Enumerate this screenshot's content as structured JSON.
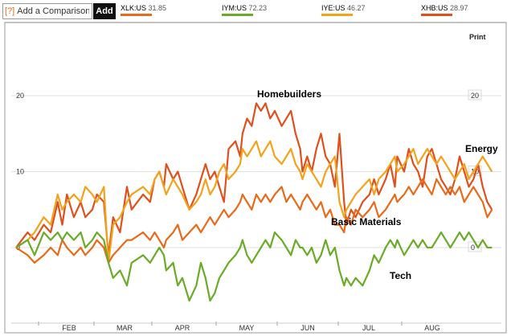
{
  "toolbar": {
    "help_label": "[?]",
    "compare_placeholder": "Add a Comparison",
    "add_label": "Add",
    "print_label": "Print"
  },
  "legend": [
    {
      "ticker": "XLK:US",
      "value": "31.85",
      "color": "#e86a1a"
    },
    {
      "ticker": "IYM:US",
      "value": "72.23",
      "color": "#6aab27"
    },
    {
      "ticker": "IYE:US",
      "value": "46.27",
      "color": "#f5a21b"
    },
    {
      "ticker": "XHB:US",
      "value": "28.97",
      "color": "#e0501c"
    }
  ],
  "annotations": {
    "homebuilders": "Homebuilders",
    "energy": "Energy",
    "basic_materials": "Basic Materials",
    "tech": "Tech"
  },
  "chart_data": {
    "type": "line",
    "x_tick_labels": [
      "FEB",
      "MAR",
      "APR",
      "MAY",
      "JUN",
      "JUL",
      "AUG"
    ],
    "y_tick_labels": [
      "20",
      "10",
      "0"
    ],
    "y_ticks": [
      20,
      10,
      0
    ],
    "ylim": [
      -10,
      23
    ],
    "xlim": [
      0,
      208
    ],
    "grid": true,
    "series": [
      {
        "name": "Homebuilders",
        "color": "#e0501c",
        "width": 2.2,
        "x": [
          0,
          5,
          8,
          12,
          15,
          18,
          20,
          22,
          25,
          28,
          30,
          33,
          35,
          38,
          40,
          42,
          45,
          48,
          50,
          55,
          58,
          60,
          62,
          64,
          65,
          68,
          70,
          72,
          75,
          78,
          80,
          82,
          84,
          86,
          88,
          90,
          92,
          95,
          97,
          98,
          100,
          102,
          104,
          106,
          108,
          110,
          112,
          115,
          117,
          119,
          121,
          123,
          124,
          126,
          128,
          130,
          132,
          134,
          136,
          138,
          140,
          142,
          143,
          145,
          147,
          150,
          153,
          155,
          157,
          160,
          162,
          164,
          165,
          168,
          170,
          172,
          174,
          176,
          178,
          180,
          182,
          184,
          186,
          188,
          190,
          192,
          194,
          196,
          198,
          200,
          202,
          204,
          206
        ],
        "y": [
          0,
          2,
          1,
          3,
          2,
          6,
          3,
          7,
          4,
          6,
          4,
          5,
          7,
          6,
          -1,
          4,
          2,
          8,
          5,
          7,
          6,
          9,
          10,
          8,
          11,
          9,
          10,
          8,
          5,
          7,
          9,
          11,
          9,
          10,
          8,
          6,
          13,
          14,
          12,
          15,
          17,
          16,
          19,
          18,
          19,
          17,
          18,
          16,
          17,
          18,
          15,
          13,
          10,
          12,
          10,
          13,
          15,
          12,
          11,
          8,
          15,
          6,
          3,
          5,
          4,
          6,
          7,
          9,
          7,
          9,
          11,
          8,
          12,
          10,
          13,
          11,
          10,
          8,
          12,
          13,
          11,
          9,
          8,
          7,
          9,
          12,
          10,
          8,
          9,
          11,
          8,
          6,
          5
        ]
      },
      {
        "name": "Energy",
        "color": "#f5a21b",
        "width": 2.2,
        "x": [
          0,
          5,
          8,
          12,
          15,
          18,
          20,
          22,
          25,
          28,
          30,
          33,
          35,
          38,
          40,
          42,
          45,
          48,
          50,
          55,
          58,
          60,
          62,
          64,
          65,
          68,
          70,
          72,
          75,
          78,
          80,
          82,
          84,
          86,
          88,
          90,
          92,
          95,
          97,
          98,
          100,
          102,
          104,
          106,
          108,
          110,
          112,
          115,
          117,
          119,
          121,
          123,
          124,
          126,
          128,
          130,
          132,
          134,
          136,
          138,
          140,
          142,
          143,
          145,
          147,
          150,
          153,
          155,
          157,
          160,
          162,
          164,
          165,
          168,
          170,
          172,
          174,
          176,
          178,
          180,
          182,
          184,
          186,
          188,
          190,
          192,
          194,
          196,
          198,
          200,
          202,
          204,
          206
        ],
        "y": [
          0,
          1,
          2,
          4,
          3,
          7,
          5,
          6,
          7,
          6,
          8,
          7,
          6,
          8,
          -2,
          3,
          4,
          6,
          7,
          8,
          7,
          9,
          10,
          8,
          7,
          9,
          8,
          7,
          5,
          6,
          7,
          9,
          7,
          8,
          10,
          11,
          9,
          10,
          11,
          13,
          12,
          13,
          14,
          12,
          13,
          14,
          12,
          11,
          12,
          13,
          11,
          10,
          9,
          11,
          10,
          9,
          8,
          10,
          11,
          12,
          6,
          4,
          5,
          6,
          7,
          8,
          9,
          7,
          9,
          10,
          11,
          12,
          10,
          11,
          12,
          13,
          11,
          12,
          13,
          12,
          11,
          12,
          11,
          10,
          9,
          10,
          11,
          9,
          10,
          11,
          12,
          11,
          10
        ]
      },
      {
        "name": "Basic Materials",
        "color": "#e86a1a",
        "width": 2.2,
        "x": [
          0,
          5,
          8,
          12,
          15,
          18,
          20,
          22,
          25,
          28,
          30,
          33,
          35,
          38,
          40,
          42,
          45,
          48,
          50,
          55,
          58,
          60,
          62,
          64,
          65,
          68,
          70,
          72,
          75,
          78,
          80,
          82,
          84,
          86,
          88,
          90,
          92,
          95,
          97,
          98,
          100,
          102,
          104,
          106,
          108,
          110,
          112,
          115,
          117,
          119,
          121,
          123,
          124,
          126,
          128,
          130,
          132,
          134,
          136,
          138,
          140,
          142,
          143,
          145,
          147,
          150,
          153,
          155,
          157,
          160,
          162,
          164,
          165,
          168,
          170,
          172,
          174,
          176,
          178,
          180,
          182,
          184,
          186,
          188,
          190,
          192,
          194,
          196,
          198,
          200,
          202,
          204,
          206
        ],
        "y": [
          0,
          -1,
          -2,
          -1,
          0,
          -1,
          1,
          0,
          -1,
          0,
          -1,
          0,
          1,
          0,
          -2,
          -1,
          0,
          1,
          1,
          2,
          1,
          2,
          1,
          0,
          1,
          2,
          3,
          1,
          2,
          3,
          2,
          3,
          4,
          3,
          4,
          5,
          4,
          5,
          6,
          7,
          6,
          5,
          7,
          6,
          7,
          6,
          7,
          8,
          6,
          7,
          6,
          5,
          6,
          7,
          6,
          5,
          6,
          4,
          5,
          3,
          3,
          2,
          4,
          3,
          5,
          4,
          5,
          6,
          4,
          5,
          6,
          7,
          6,
          7,
          8,
          7,
          8,
          9,
          8,
          7,
          9,
          8,
          7,
          8,
          7,
          8,
          6,
          7,
          8,
          7,
          6,
          4,
          5
        ]
      },
      {
        "name": "Tech",
        "color": "#6aab27",
        "width": 2.2,
        "x": [
          0,
          5,
          8,
          12,
          15,
          18,
          20,
          22,
          25,
          28,
          30,
          33,
          35,
          38,
          40,
          42,
          45,
          48,
          50,
          55,
          58,
          60,
          62,
          64,
          65,
          68,
          70,
          72,
          75,
          78,
          80,
          82,
          84,
          86,
          88,
          90,
          92,
          95,
          97,
          98,
          100,
          102,
          104,
          106,
          108,
          110,
          112,
          115,
          117,
          119,
          121,
          123,
          124,
          126,
          128,
          130,
          132,
          134,
          136,
          138,
          140,
          142,
          143,
          145,
          147,
          150,
          153,
          155,
          157,
          160,
          162,
          164,
          165,
          168,
          170,
          172,
          174,
          176,
          178,
          180,
          182,
          184,
          186,
          188,
          190,
          192,
          194,
          196,
          198,
          200,
          202,
          204,
          206
        ],
        "y": [
          0,
          1,
          -1,
          2,
          1,
          2,
          1,
          2,
          1,
          2,
          0,
          1,
          2,
          1,
          -2,
          -4,
          -3,
          -5,
          -2,
          -1,
          -2,
          -1,
          0,
          -1,
          -3,
          -2,
          -5,
          -4,
          -7,
          -5,
          -2,
          -4,
          -7,
          -6,
          -4,
          -3,
          -2,
          -1,
          0,
          1,
          -1,
          -2,
          -1,
          0,
          1,
          0,
          2,
          1,
          0,
          -1,
          1,
          0,
          0,
          -1,
          0,
          -2,
          -1,
          1,
          -1,
          0,
          -3,
          -5,
          -4,
          -5,
          -4,
          -5,
          -3,
          -1,
          -2,
          0,
          1,
          0,
          1,
          -1,
          0,
          1,
          0,
          1,
          0,
          0,
          1,
          2,
          1,
          0,
          1,
          2,
          1,
          2,
          1,
          0,
          1,
          0,
          0
        ]
      }
    ]
  }
}
